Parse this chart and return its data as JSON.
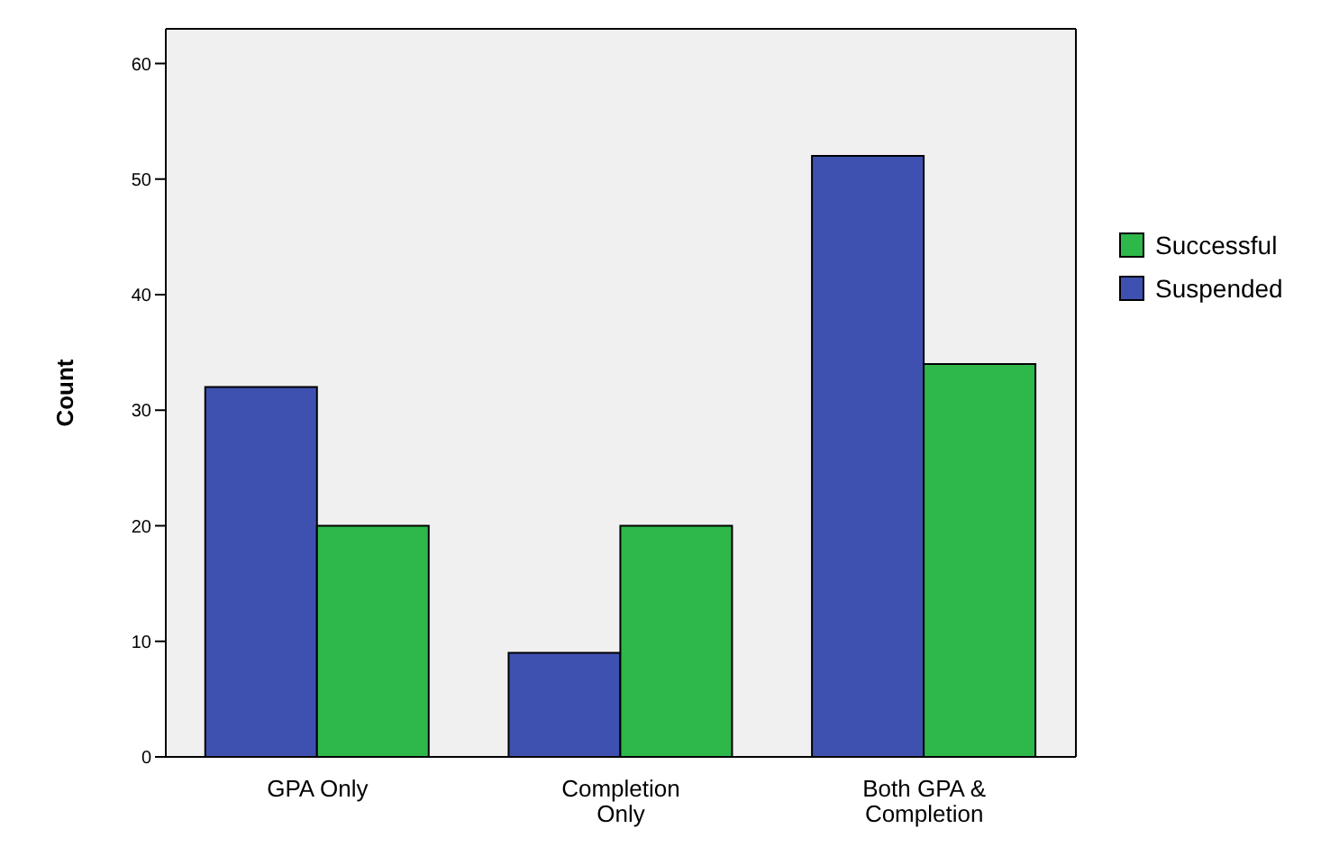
{
  "chart_data": {
    "type": "bar",
    "ylabel": "Count",
    "categories": [
      "GPA Only",
      "Completion Only",
      "Both GPA & Completion"
    ],
    "series": [
      {
        "name": "Suspended",
        "color": "#3f51b0",
        "values": [
          32,
          9,
          52
        ]
      },
      {
        "name": "Successful",
        "color": "#2eb84a",
        "values": [
          20,
          20,
          34
        ]
      }
    ],
    "ylim": [
      0,
      63
    ],
    "yticks": [
      0,
      10,
      20,
      30,
      40,
      50,
      60
    ],
    "legend": "right"
  }
}
